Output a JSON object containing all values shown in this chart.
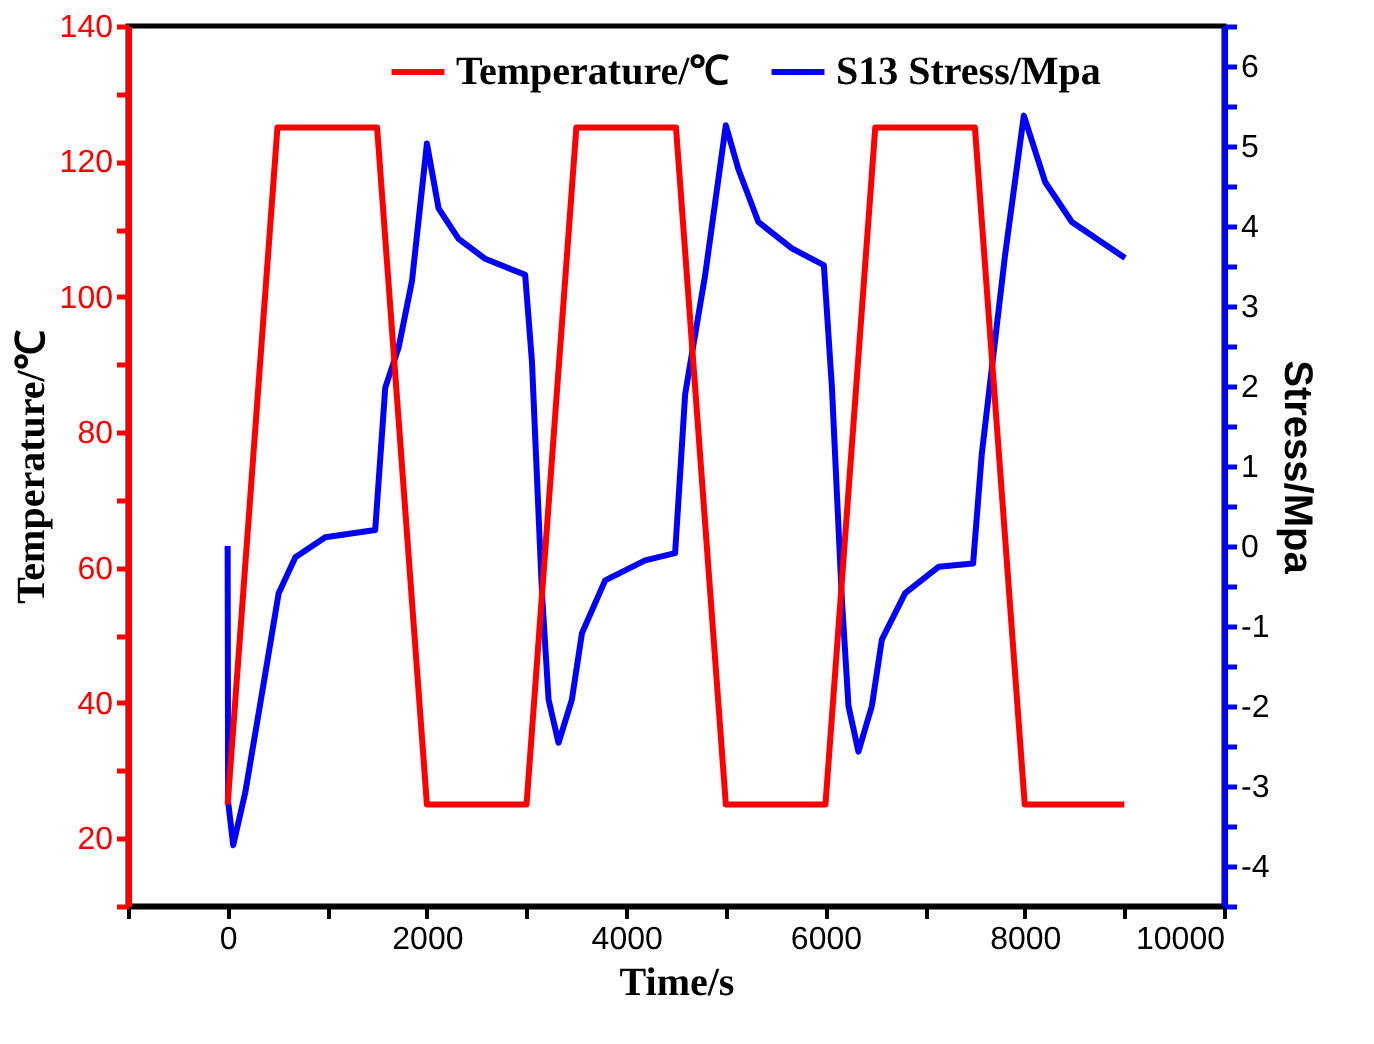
{
  "chart_data": {
    "type": "line",
    "xlabel": "Time/s",
    "ylabel": "Temperature/℃",
    "y2label": "Stress/Mpa",
    "xlim": [
      -1000,
      10000
    ],
    "xticks": [
      {
        "value": -1000,
        "label": null
      },
      0,
      {
        "value": 1000,
        "label": null
      },
      2000,
      {
        "value": 3000,
        "label": null
      },
      4000,
      {
        "value": 5000,
        "label": null
      },
      6000,
      {
        "value": 7000,
        "label": null
      },
      8000,
      {
        "value": 9000,
        "label": null
      },
      10000
    ],
    "ylim": [
      10,
      140
    ],
    "yticks": [
      {
        "value": 10,
        "label": null
      },
      20,
      {
        "value": 30,
        "label": null
      },
      40,
      {
        "value": 50,
        "label": null
      },
      60,
      {
        "value": 70,
        "label": null
      },
      80,
      {
        "value": 90,
        "label": null
      },
      100,
      {
        "value": 110,
        "label": null
      },
      120,
      {
        "value": 130,
        "label": null
      },
      140
    ],
    "y2lim": [
      -4.5,
      6.5
    ],
    "y2ticks": [
      {
        "value": -4.5,
        "label": null
      },
      -4,
      {
        "value": -3.5,
        "label": null
      },
      -3,
      {
        "value": -2.5,
        "label": null
      },
      -2,
      {
        "value": -1.5,
        "label": null
      },
      -1,
      {
        "value": -0.5,
        "label": null
      },
      0,
      {
        "value": 0.5,
        "label": null
      },
      1,
      {
        "value": 1.5,
        "label": null
      },
      2,
      {
        "value": 2.5,
        "label": null
      },
      3,
      {
        "value": 3.5,
        "label": null
      },
      4,
      {
        "value": 4.5,
        "label": null
      },
      5,
      {
        "value": 5.5,
        "label": null
      },
      6,
      {
        "value": 6.5,
        "label": null
      }
    ],
    "grid": false,
    "legend": "top",
    "marker": "none",
    "line_style": "solid",
    "series": [
      {
        "name": "Temperature/℃",
        "color": "#ff0000",
        "x": [
          0,
          500,
          1500,
          2000,
          3000,
          3500,
          4500,
          5000,
          6000,
          6500,
          7500,
          8000,
          9000
        ],
        "values": [
          25,
          125,
          125,
          25,
          25,
          125,
          125,
          25,
          25,
          125,
          125,
          25,
          25
        ]
      },
      {
        "name": "S13 Stress/Mpa",
        "color": "#0000ff",
        "axis": "y2",
        "x": [
          0,
          5,
          56,
          177,
          345,
          512,
          680,
          980,
          1481,
          1582,
          1716,
          1850,
          2000,
          2117,
          2318,
          2585,
          2986,
          3054,
          3155,
          3221,
          3321,
          3455,
          3556,
          3789,
          4190,
          4491,
          4592,
          4793,
          5000,
          5126,
          5327,
          5663,
          5984,
          6065,
          6165,
          6231,
          6331,
          6466,
          6566,
          6800,
          7135,
          7482,
          7569,
          7803,
          7991,
          8205,
          8473,
          9007
        ],
        "values": [
          0,
          -3.2,
          -3.74,
          -3.08,
          -1.84,
          -0.59,
          -0.14,
          0.11,
          0.2,
          1.98,
          2.48,
          3.31,
          5.03,
          4.22,
          3.84,
          3.59,
          3.39,
          2.31,
          -0.59,
          -1.92,
          -2.46,
          -1.92,
          -1.09,
          -0.43,
          -0.18,
          -0.09,
          1.9,
          3.39,
          5.26,
          4.71,
          4.05,
          3.72,
          3.51,
          1.98,
          -0.67,
          -2.0,
          -2.57,
          -2.0,
          -1.17,
          -0.59,
          -0.26,
          -0.22,
          1.15,
          3.64,
          5.38,
          4.55,
          4.05,
          3.6
        ]
      }
    ]
  }
}
